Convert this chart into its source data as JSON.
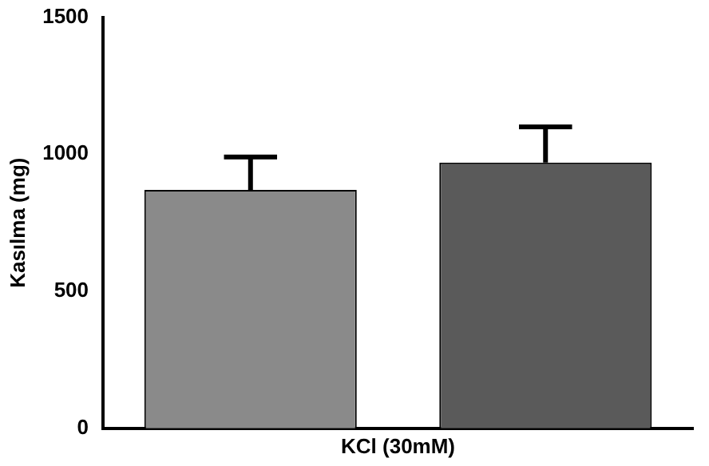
{
  "chart_data": {
    "type": "bar",
    "xlabel": "KCl (30mM)",
    "ylabel": "Kasılma (mg)",
    "categories": [
      null,
      null
    ],
    "values": [
      870,
      970
    ],
    "colors": [
      "#8a8a8a",
      "#5a5a5a"
    ],
    "errors": [
      [
        870,
        990
      ],
      [
        970,
        1100
      ]
    ],
    "ylim": [
      0,
      1500
    ],
    "yticks": [
      0,
      500,
      1000,
      1500
    ],
    "grid": false,
    "legend": false
  }
}
